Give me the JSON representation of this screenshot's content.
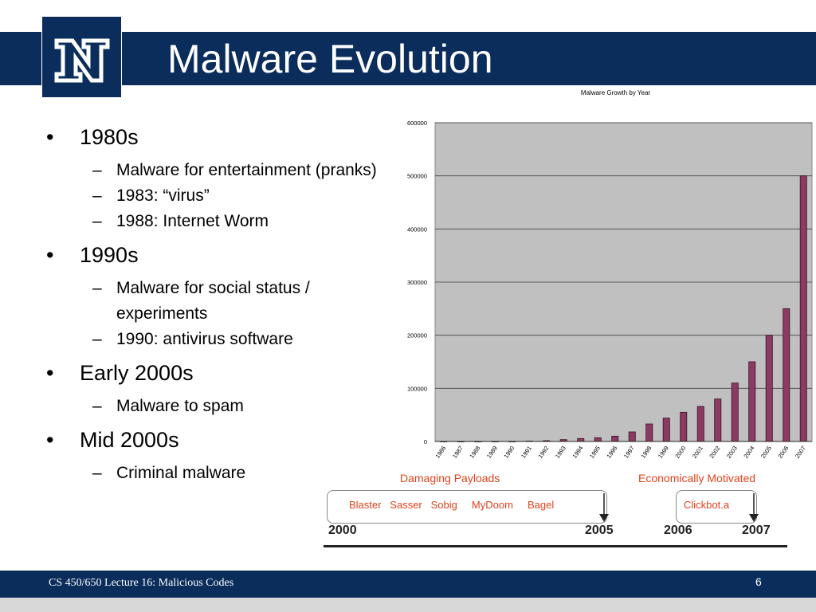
{
  "slide": {
    "title": "Malware Evolution",
    "footer": "CS 450/650 Lecture 16: Malicious Codes",
    "page_number": "6",
    "colors": {
      "navy": "#0a2d5c",
      "bar": "#8b3a62",
      "plot_bg": "#c0c0c0",
      "timeline_accent": "#e0421c"
    }
  },
  "bullets": [
    {
      "label": "1980s",
      "subs": [
        "Malware for entertainment (pranks)",
        "1983: “virus”",
        "1988: Internet Worm"
      ]
    },
    {
      "label": "1990s",
      "subs": [
        "Malware for social status / experiments",
        "1990: antivirus software"
      ]
    },
    {
      "label": "Early 2000s",
      "subs": [
        "Malware to spam"
      ]
    },
    {
      "label": "Mid 2000s",
      "subs": [
        "Criminal malware"
      ]
    }
  ],
  "chart_data": {
    "type": "bar",
    "title": "Malware Growth by Year",
    "xlabel": "",
    "ylabel": "",
    "ylim": [
      0,
      600000
    ],
    "yticks": [
      0,
      100000,
      200000,
      300000,
      400000,
      500000,
      600000
    ],
    "grid": true,
    "categories": [
      "1986",
      "1987",
      "1988",
      "1989",
      "1990",
      "1991",
      "1992",
      "1993",
      "1994",
      "1995",
      "1996",
      "1997",
      "1998",
      "1999",
      "2000",
      "2001",
      "2002",
      "2003",
      "2004",
      "2005",
      "2006",
      "2007"
    ],
    "values": [
      0,
      0,
      0,
      0,
      0,
      800,
      1500,
      3500,
      5500,
      7000,
      10000,
      18000,
      33000,
      44000,
      55000,
      66000,
      80000,
      110000,
      150000,
      200000,
      250000,
      500000
    ]
  },
  "timeline": {
    "left_heading": "Damaging Payloads",
    "right_heading": "Economically Motivated",
    "left_items": "Blaster   Sasser   Sobig     MyDoom     Bagel",
    "right_items": "Clickbot.a",
    "years": [
      "2000",
      "2005",
      "2006",
      "2007"
    ]
  }
}
